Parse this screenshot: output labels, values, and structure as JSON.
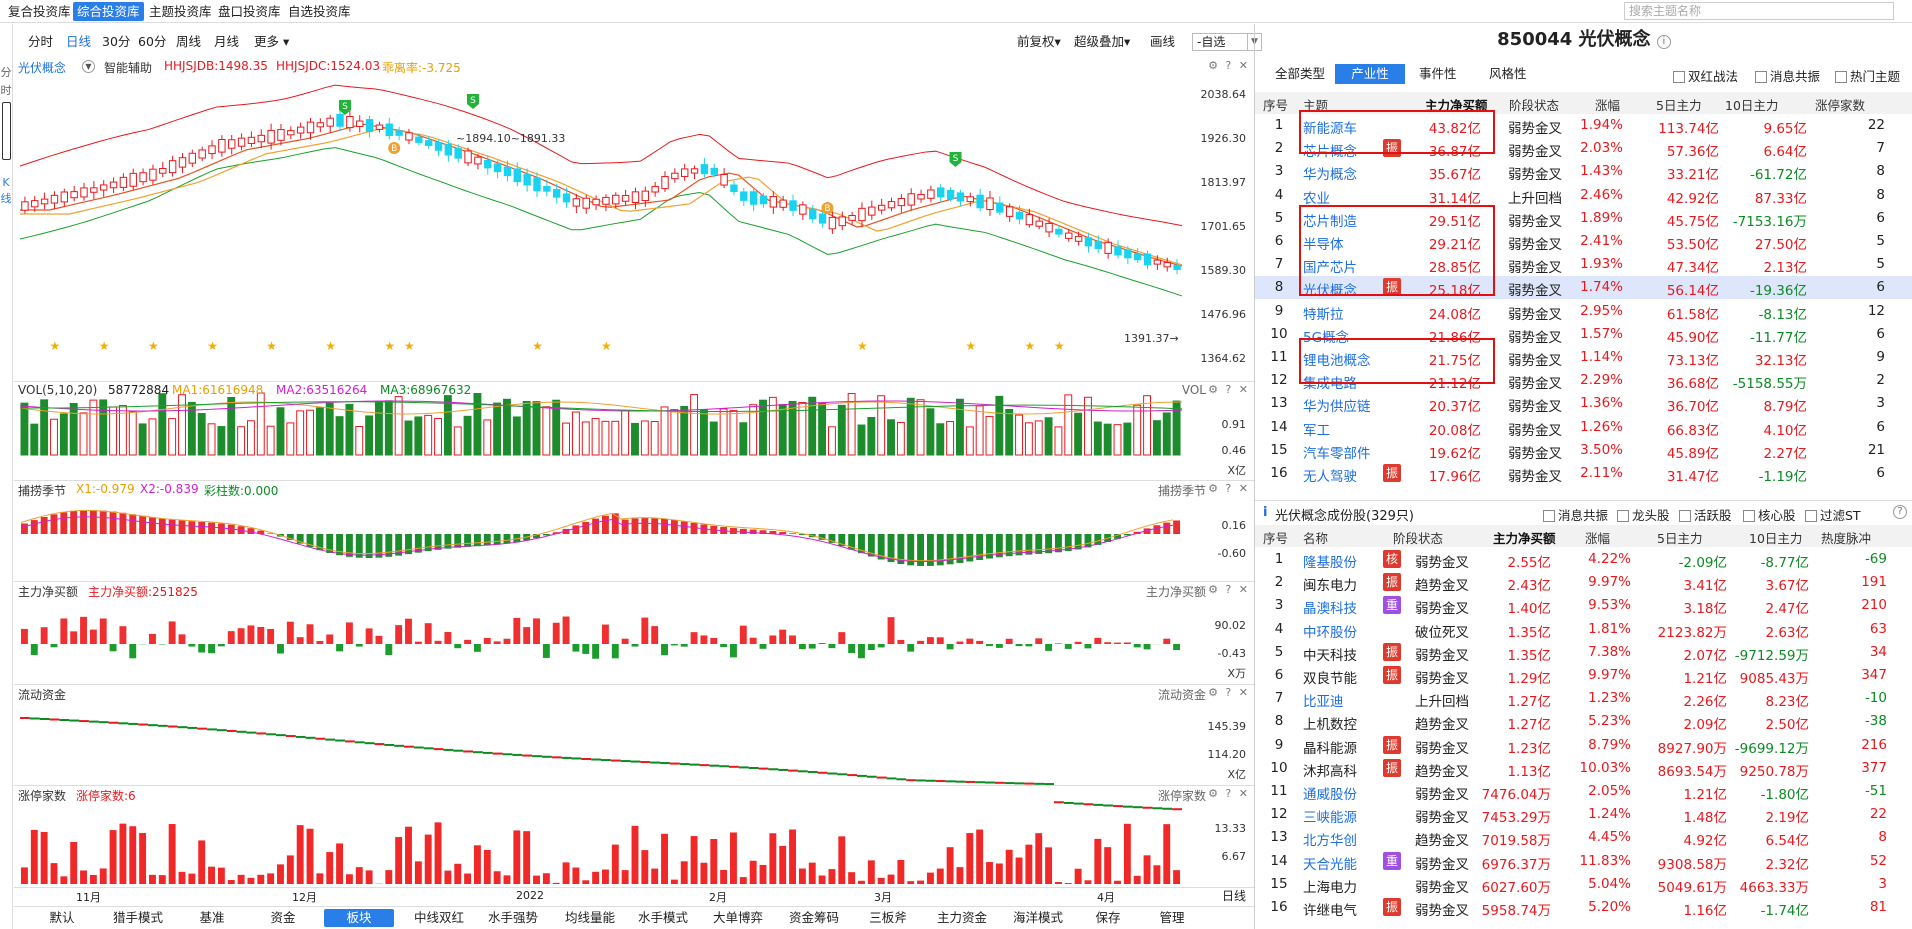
{
  "topnav": {
    "tabs": [
      {
        "label": "复合投资库",
        "active": false
      },
      {
        "label": "综合投资库",
        "active": true
      },
      {
        "label": "主题投资库",
        "active": false
      },
      {
        "label": "盘口投资库",
        "active": false
      },
      {
        "label": "自选投资库",
        "active": false
      }
    ],
    "search_placeholder": "搜索主题名称"
  },
  "left_strip": {
    "a": "分",
    "b": "时",
    "c": "K",
    "d": "线"
  },
  "toolbar": {
    "periods": [
      {
        "label": "分时",
        "active": false
      },
      {
        "label": "日线",
        "active": true
      },
      {
        "label": "30分",
        "active": false
      },
      {
        "label": "60分",
        "active": false
      },
      {
        "label": "周线",
        "active": false
      },
      {
        "label": "月线",
        "active": false
      },
      {
        "label": "更多 ▾",
        "active": false
      }
    ],
    "fuquan": "前复权▾",
    "overlay": "超级叠加▾",
    "draw": "画线",
    "select_value": "-自选"
  },
  "main_chart": {
    "name": "光伏概念",
    "assist": "智能辅助",
    "hhjsjdb": "HHJSJDB:1498.35",
    "hhjsjdc": "HHJSJDC:1524.03",
    "deviation": "乖离率:-3.725",
    "y_ticks": [
      "2038.64",
      "1926.30",
      "1813.97",
      "1701.65",
      "1589.30",
      "1476.96",
      "1364.62"
    ],
    "peak_label": "~1894.10~1891.33",
    "low_label": "1391.37→",
    "signal_s": "S",
    "signal_b": "B"
  },
  "vol_panel": {
    "title": "VOL(5,10,20)",
    "value": "58772884",
    "ma1": "MA1:61616948",
    "ma2": "MA2:63516264",
    "ma3": "MA3:68967632",
    "right_name": "VOL",
    "y_ticks": [
      "0.91",
      "0.46"
    ],
    "unit": "X亿"
  },
  "capture_panel": {
    "title": "捕捞季节",
    "x1": "X1:-0.979",
    "x2": "X2:-0.839",
    "colorbar": "彩柱数:0.000",
    "right_name": "捕捞季节",
    "y_ticks": [
      "0.16",
      "-0.60"
    ]
  },
  "netbuy_panel": {
    "title": "主力净买额",
    "value": "主力净买额:251825",
    "right_name": "主力净买额",
    "y_ticks": [
      "90.02",
      "-0.43"
    ],
    "unit": "X万"
  },
  "liquidity_panel": {
    "title": "流动资金",
    "right_name": "流动资金",
    "y_ticks": [
      "145.39",
      "114.20"
    ],
    "unit": "X亿"
  },
  "limitup_panel": {
    "title": "涨停家数",
    "value": "涨停家数:6",
    "right_name": "涨停家数",
    "y_ticks": [
      "13.33",
      "6.67"
    ]
  },
  "x_labels": [
    "11月",
    "12月",
    "2022",
    "2月",
    "3月",
    "4月"
  ],
  "bottom_tabs": [
    {
      "label": "默认",
      "active": false
    },
    {
      "label": "猎手模式",
      "active": false
    },
    {
      "label": "基准",
      "active": false
    },
    {
      "label": "资金",
      "active": false
    },
    {
      "label": "板块",
      "active": true
    },
    {
      "label": "中线双红",
      "active": false
    },
    {
      "label": "水手强势",
      "active": false
    },
    {
      "label": "均线量能",
      "active": false
    },
    {
      "label": "水手模式",
      "active": false
    },
    {
      "label": "大单博弈",
      "active": false
    },
    {
      "label": "资金筹码",
      "active": false
    },
    {
      "label": "三板斧",
      "active": false
    },
    {
      "label": "主力资金",
      "active": false
    },
    {
      "label": "海洋模式",
      "active": false
    },
    {
      "label": "保存",
      "active": false
    },
    {
      "label": "管理",
      "active": false
    },
    {
      "label": "日线",
      "active": false
    }
  ],
  "right": {
    "title": "850044 光伏概念",
    "tabs": [
      {
        "label": "全部类型",
        "active": false
      },
      {
        "label": "产业性",
        "active": true
      },
      {
        "label": "事件性",
        "active": false
      },
      {
        "label": "风格性",
        "active": false
      }
    ],
    "checks": [
      "双红战法",
      "消息共振",
      "热门主题"
    ],
    "table_headers": [
      "序号",
      "主题",
      "主力净买额",
      "阶段状态",
      "涨幅",
      "5日主力",
      "10日主力",
      "涨停家数"
    ],
    "theme_rows": [
      {
        "no": "1",
        "name": "新能源车",
        "tag": "",
        "net": "43.82亿",
        "stage": "弱势金叉",
        "chg": "1.94%",
        "d5": "113.74亿",
        "d10": "9.65亿",
        "cnt": "22"
      },
      {
        "no": "2",
        "name": "芯片概念",
        "tag": "振",
        "net": "36.87亿",
        "stage": "弱势金叉",
        "chg": "2.03%",
        "d5": "57.36亿",
        "d10": "6.64亿",
        "cnt": "7"
      },
      {
        "no": "3",
        "name": "华为概念",
        "tag": "",
        "net": "35.67亿",
        "stage": "弱势金叉",
        "chg": "1.43%",
        "d5": "33.21亿",
        "d10": "-61.72亿",
        "cnt": "8"
      },
      {
        "no": "4",
        "name": "农业",
        "tag": "",
        "net": "31.14亿",
        "stage": "上升回档",
        "chg": "2.46%",
        "d5": "42.92亿",
        "d10": "87.33亿",
        "cnt": "8"
      },
      {
        "no": "5",
        "name": "芯片制造",
        "tag": "",
        "net": "29.51亿",
        "stage": "弱势金叉",
        "chg": "1.89%",
        "d5": "45.75亿",
        "d10": "-7153.16万",
        "cnt": "6"
      },
      {
        "no": "6",
        "name": "半导体",
        "tag": "",
        "net": "29.21亿",
        "stage": "弱势金叉",
        "chg": "2.41%",
        "d5": "53.50亿",
        "d10": "27.50亿",
        "cnt": "5"
      },
      {
        "no": "7",
        "name": "国产芯片",
        "tag": "",
        "net": "28.85亿",
        "stage": "弱势金叉",
        "chg": "1.93%",
        "d5": "47.34亿",
        "d10": "2.13亿",
        "cnt": "5"
      },
      {
        "no": "8",
        "name": "光伏概念",
        "tag": "振",
        "net": "25.18亿",
        "stage": "弱势金叉",
        "chg": "1.74%",
        "d5": "56.14亿",
        "d10": "-19.36亿",
        "cnt": "6",
        "sel": true
      },
      {
        "no": "9",
        "name": "特斯拉",
        "tag": "",
        "net": "24.08亿",
        "stage": "弱势金叉",
        "chg": "2.95%",
        "d5": "61.58亿",
        "d10": "-8.13亿",
        "cnt": "12"
      },
      {
        "no": "10",
        "name": "5G概念",
        "tag": "",
        "net": "21.86亿",
        "stage": "弱势金叉",
        "chg": "1.57%",
        "d5": "45.90亿",
        "d10": "-11.77亿",
        "cnt": "6"
      },
      {
        "no": "11",
        "name": "锂电池概念",
        "tag": "",
        "net": "21.75亿",
        "stage": "弱势金叉",
        "chg": "1.14%",
        "d5": "73.13亿",
        "d10": "32.13亿",
        "cnt": "9"
      },
      {
        "no": "12",
        "name": "集成电路",
        "tag": "",
        "net": "21.12亿",
        "stage": "弱势金叉",
        "chg": "2.29%",
        "d5": "36.68亿",
        "d10": "-5158.55万",
        "cnt": "2"
      },
      {
        "no": "13",
        "name": "华为供应链",
        "tag": "",
        "net": "20.37亿",
        "stage": "弱势金叉",
        "chg": "1.36%",
        "d5": "36.70亿",
        "d10": "8.79亿",
        "cnt": "3"
      },
      {
        "no": "14",
        "name": "军工",
        "tag": "",
        "net": "20.08亿",
        "stage": "弱势金叉",
        "chg": "1.26%",
        "d5": "66.83亿",
        "d10": "4.10亿",
        "cnt": "6"
      },
      {
        "no": "15",
        "name": "汽车零部件",
        "tag": "",
        "net": "19.62亿",
        "stage": "弱势金叉",
        "chg": "3.50%",
        "d5": "45.89亿",
        "d10": "2.27亿",
        "cnt": "21"
      },
      {
        "no": "16",
        "name": "无人驾驶",
        "tag": "振",
        "net": "17.96亿",
        "stage": "弱势金叉",
        "chg": "2.11%",
        "d5": "31.47亿",
        "d10": "-1.19亿",
        "cnt": "6"
      }
    ],
    "stocks_title": "光伏概念成份股(329只)",
    "stock_checks": [
      "消息共振",
      "龙头股",
      "活跃股",
      "核心股",
      "过滤ST"
    ],
    "stock_headers": [
      "序号",
      "名称",
      "阶段状态",
      "主力净买额",
      "涨幅",
      "5日主力",
      "10日主力",
      "热度脉冲"
    ],
    "stock_rows": [
      {
        "no": "1",
        "name": "隆基股份",
        "tag": "核",
        "tagc": "#e03a2e",
        "stage": "弱势金叉",
        "net": "2.55亿",
        "chg": "4.22%",
        "d5": "-2.09亿",
        "d10": "-8.77亿",
        "heat": "-69",
        "nb": true
      },
      {
        "no": "2",
        "name": "闽东电力",
        "tag": "振",
        "tagc": "#e03a2e",
        "stage": "趋势金叉",
        "net": "2.43亿",
        "chg": "9.97%",
        "d5": "3.41亿",
        "d10": "3.67亿",
        "heat": "191",
        "nb": false
      },
      {
        "no": "3",
        "name": "晶澳科技",
        "tag": "重",
        "tagc": "#a050e0",
        "stage": "弱势金叉",
        "net": "1.40亿",
        "chg": "9.53%",
        "d5": "3.18亿",
        "d10": "2.47亿",
        "heat": "210",
        "nb": true
      },
      {
        "no": "4",
        "name": "中环股份",
        "tag": "",
        "tagc": "",
        "stage": "破位死叉",
        "net": "1.35亿",
        "chg": "1.81%",
        "d5": "2123.82万",
        "d10": "2.63亿",
        "heat": "63",
        "nb": true
      },
      {
        "no": "5",
        "name": "中天科技",
        "tag": "振",
        "tagc": "#e03a2e",
        "stage": "弱势金叉",
        "net": "1.35亿",
        "chg": "7.38%",
        "d5": "2.07亿",
        "d10": "-9712.59万",
        "heat": "34",
        "nb": false
      },
      {
        "no": "6",
        "name": "双良节能",
        "tag": "振",
        "tagc": "#e03a2e",
        "stage": "弱势金叉",
        "net": "1.29亿",
        "chg": "9.97%",
        "d5": "1.21亿",
        "d10": "9085.43万",
        "heat": "347",
        "nb": false
      },
      {
        "no": "7",
        "name": "比亚迪",
        "tag": "",
        "tagc": "",
        "stage": "上升回档",
        "net": "1.27亿",
        "chg": "1.23%",
        "d5": "2.26亿",
        "d10": "8.23亿",
        "heat": "-10",
        "nb": true
      },
      {
        "no": "8",
        "name": "上机数控",
        "tag": "",
        "tagc": "",
        "stage": "趋势金叉",
        "net": "1.27亿",
        "chg": "5.23%",
        "d5": "2.09亿",
        "d10": "2.50亿",
        "heat": "-38",
        "nb": false
      },
      {
        "no": "9",
        "name": "晶科能源",
        "tag": "振",
        "tagc": "#e03a2e",
        "stage": "弱势金叉",
        "net": "1.23亿",
        "chg": "8.79%",
        "d5": "8927.90万",
        "d10": "-9699.12万",
        "heat": "216",
        "nb": false
      },
      {
        "no": "10",
        "name": "沐邦高科",
        "tag": "振",
        "tagc": "#e03a2e",
        "stage": "趋势金叉",
        "net": "1.13亿",
        "chg": "10.03%",
        "d5": "8693.54万",
        "d10": "9250.78万",
        "heat": "377",
        "nb": false
      },
      {
        "no": "11",
        "name": "通威股份",
        "tag": "",
        "tagc": "",
        "stage": "弱势金叉",
        "net": "7476.04万",
        "chg": "2.05%",
        "d5": "1.21亿",
        "d10": "-1.80亿",
        "heat": "-51",
        "nb": true
      },
      {
        "no": "12",
        "name": "三峡能源",
        "tag": "",
        "tagc": "",
        "stage": "弱势金叉",
        "net": "7453.29万",
        "chg": "1.24%",
        "d5": "1.48亿",
        "d10": "2.19亿",
        "heat": "22",
        "nb": true
      },
      {
        "no": "13",
        "name": "北方华创",
        "tag": "",
        "tagc": "",
        "stage": "趋势金叉",
        "net": "7019.58万",
        "chg": "4.45%",
        "d5": "4.92亿",
        "d10": "6.54亿",
        "heat": "8",
        "nb": true
      },
      {
        "no": "14",
        "name": "天合光能",
        "tag": "重",
        "tagc": "#a050e0",
        "stage": "弱势金叉",
        "net": "6976.37万",
        "chg": "11.83%",
        "d5": "9308.58万",
        "d10": "2.32亿",
        "heat": "52",
        "nb": true
      },
      {
        "no": "15",
        "name": "上海电力",
        "tag": "",
        "tagc": "",
        "stage": "弱势金叉",
        "net": "6027.60万",
        "chg": "5.04%",
        "d5": "5049.61万",
        "d10": "4663.33万",
        "heat": "3",
        "nb": false
      },
      {
        "no": "16",
        "name": "许继电气",
        "tag": "振",
        "tagc": "#e03a2e",
        "stage": "弱势金叉",
        "net": "5958.74万",
        "chg": "5.20%",
        "d5": "1.16亿",
        "d10": "-1.74亿",
        "heat": "81",
        "nb": false
      }
    ]
  },
  "colors": {
    "accent": "#2a7ee8",
    "up": "#e8191e",
    "down": "#0c8a24",
    "cyan": "#19d3f0",
    "orange": "#f0a030"
  }
}
